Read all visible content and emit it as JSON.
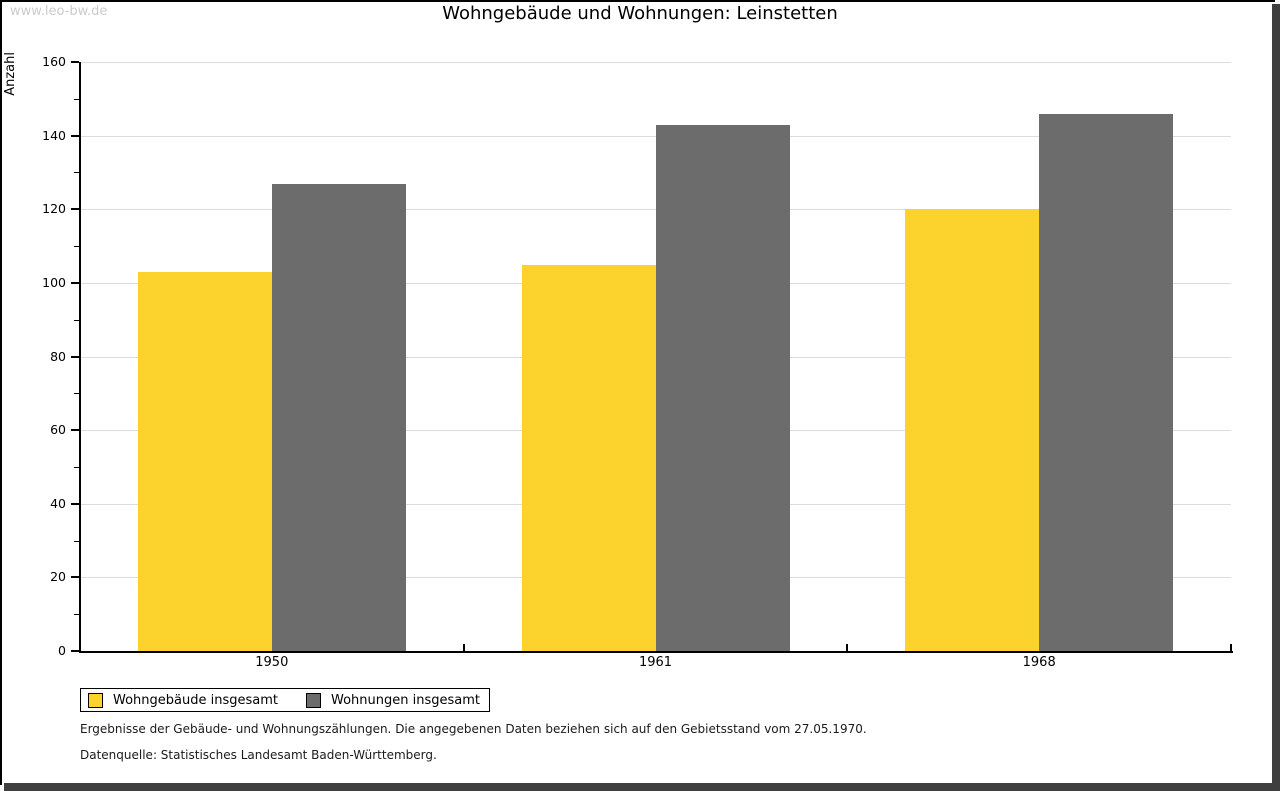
{
  "watermark": "www.leo-bw.de",
  "chart_data": {
    "type": "bar",
    "title": "Wohngebäude und Wohnungen: Leinstetten",
    "ylabel": "Anzahl",
    "xlabel": "",
    "categories": [
      "1950",
      "1961",
      "1968"
    ],
    "series": [
      {
        "name": "Wohngebäude insgesamt",
        "color": "#FCD32D",
        "values": [
          103,
          105,
          120
        ]
      },
      {
        "name": "Wohnungen insgesamt",
        "color": "#6C6C6C",
        "values": [
          127,
          143,
          146
        ]
      }
    ],
    "ylim": [
      0,
      160
    ],
    "ytick_major_step": 20,
    "ytick_minor_step": 10,
    "grid": true,
    "gridline_color": "#dcdcdc",
    "legend_position": "bottom-left"
  },
  "footer": {
    "line1": "Ergebnisse der Gebäude- und Wohnungszählungen. Die angegebenen Daten beziehen sich auf den Gebietsstand vom 27.05.1970.",
    "line2": "Datenquelle: Statistisches Landesamt Baden-Württemberg."
  }
}
